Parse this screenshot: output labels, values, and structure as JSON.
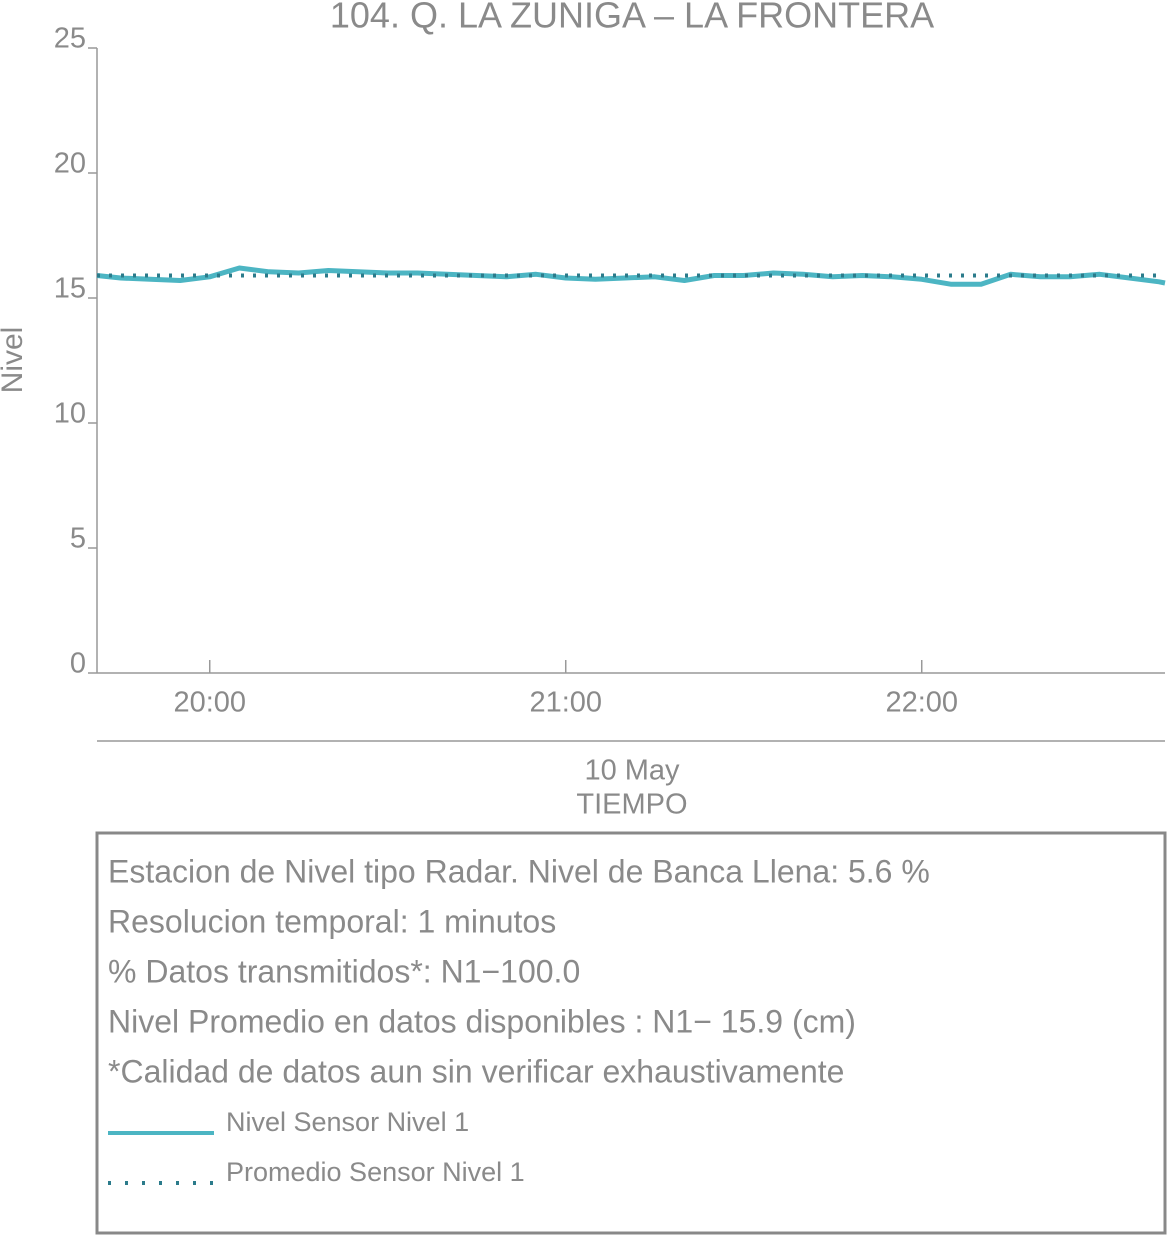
{
  "chart_data": {
    "type": "line",
    "title": "104. Q. LA ZUNIGA – LA FRONTERA",
    "y_label": "Nivel",
    "x_label": "TIEMPO",
    "x_sublabel": "10 May",
    "x": [
      "19:41",
      "19:45",
      "19:50",
      "19:55",
      "20:00",
      "20:05",
      "20:10",
      "20:15",
      "20:20",
      "20:25",
      "20:30",
      "20:35",
      "20:40",
      "20:45",
      "20:50",
      "20:55",
      "21:00",
      "21:05",
      "21:10",
      "21:15",
      "21:20",
      "21:25",
      "21:30",
      "21:35",
      "21:40",
      "21:45",
      "21:50",
      "21:55",
      "22:00",
      "22:05",
      "22:10",
      "22:15",
      "22:20",
      "22:25",
      "22:30",
      "22:35",
      "22:40",
      "22:41"
    ],
    "xlim": [
      "19:41",
      "22:41"
    ],
    "xticks": [
      "20:00",
      "21:00",
      "22:00"
    ],
    "ylim": [
      0,
      25
    ],
    "yticks": [
      0,
      5,
      10,
      15,
      20,
      25
    ],
    "series": [
      {
        "name": "Nivel Sensor Nivel 1",
        "color": "#4cb5c3",
        "style": "solid",
        "values": [
          15.9,
          15.8,
          15.75,
          15.7,
          15.85,
          16.2,
          16.05,
          16.0,
          16.1,
          16.05,
          16.0,
          16.0,
          15.95,
          15.9,
          15.85,
          15.95,
          15.8,
          15.75,
          15.8,
          15.85,
          15.7,
          15.9,
          15.9,
          16.0,
          15.95,
          15.85,
          15.9,
          15.85,
          15.75,
          15.55,
          15.55,
          15.95,
          15.85,
          15.85,
          15.95,
          15.8,
          15.65,
          15.6
        ]
      },
      {
        "name": "Promedio Sensor Nivel 1",
        "color": "#2b7b8b",
        "style": "dotted",
        "x": [
          "19:41",
          "22:41"
        ],
        "values": [
          15.9,
          15.9
        ]
      }
    ],
    "info_lines": [
      "Estacion de Nivel tipo Radar. Nivel de Banca Llena:  5.6 %",
      "Resolucion temporal: 1 minutos",
      "% Datos transmitidos*: N1−100.0",
      "Nivel Promedio en datos disponibles : N1− 15.9 (cm)",
      "*Calidad de datos aun sin verificar exhaustivamente"
    ]
  }
}
